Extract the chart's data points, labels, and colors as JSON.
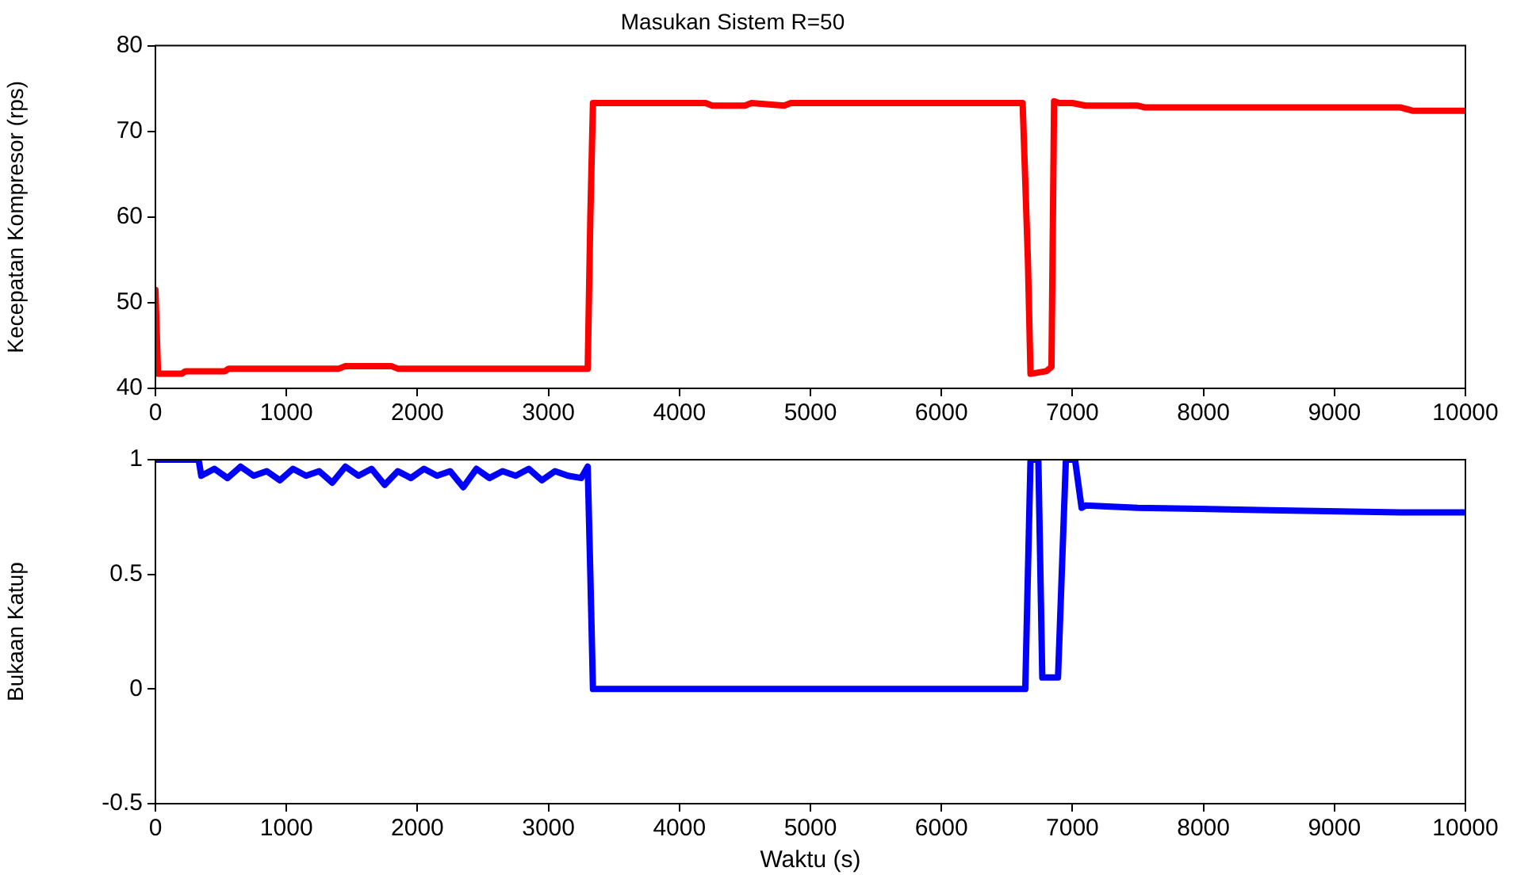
{
  "chart_data": [
    {
      "type": "line",
      "title": "Masukan Sistem R=50",
      "ylabel": "Kecepatan Kompresor (rps)",
      "xlim": [
        0,
        10000
      ],
      "xticks": [
        0,
        1000,
        2000,
        3000,
        4000,
        5000,
        6000,
        7000,
        8000,
        9000,
        10000
      ],
      "ylim": [
        40,
        80
      ],
      "yticks": [
        40,
        50,
        60,
        70,
        80
      ],
      "grid": false,
      "legend": false,
      "marker": "none",
      "line_style": "solid",
      "series": [
        {
          "color": "#ff0000",
          "x": [
            0,
            20,
            200,
            230,
            530,
            560,
            1400,
            1450,
            1800,
            1850,
            3300,
            3320,
            3340,
            4200,
            4250,
            4500,
            4550,
            4800,
            4850,
            6620,
            6660,
            6680,
            6800,
            6840,
            6860,
            6900,
            7000,
            7100,
            7500,
            7550,
            9500,
            9600,
            10000
          ],
          "values": [
            51.5,
            41.7,
            41.7,
            42.0,
            42.0,
            42.3,
            42.3,
            42.6,
            42.6,
            42.3,
            42.3,
            60,
            73.3,
            73.3,
            73.0,
            73.0,
            73.3,
            73.0,
            73.3,
            73.3,
            55,
            41.7,
            42.0,
            42.5,
            73.5,
            73.3,
            73.3,
            73.0,
            73.0,
            72.8,
            72.8,
            72.4,
            72.4
          ]
        }
      ]
    },
    {
      "type": "line",
      "xlabel": "Waktu (s)",
      "ylabel": "Bukaan Katup",
      "xlim": [
        0,
        10000
      ],
      "xticks": [
        0,
        1000,
        2000,
        3000,
        4000,
        5000,
        6000,
        7000,
        8000,
        9000,
        10000
      ],
      "ylim": [
        -0.5,
        1
      ],
      "yticks": [
        -0.5,
        0,
        0.5,
        1
      ],
      "grid": false,
      "legend": false,
      "marker": "none",
      "line_style": "solid",
      "series": [
        {
          "color": "#0000ff",
          "x": [
            0,
            330,
            350,
            450,
            550,
            650,
            750,
            850,
            950,
            1050,
            1150,
            1250,
            1350,
            1450,
            1550,
            1650,
            1750,
            1850,
            1950,
            2050,
            2150,
            2250,
            2350,
            2450,
            2550,
            2650,
            2750,
            2850,
            2950,
            3050,
            3150,
            3250,
            3300,
            3320,
            3340,
            6640,
            6680,
            6740,
            6770,
            6890,
            6950,
            7020,
            7070,
            7100,
            7500,
            8500,
            9500,
            10000
          ],
          "values": [
            1,
            1,
            0.93,
            0.96,
            0.92,
            0.97,
            0.93,
            0.95,
            0.91,
            0.96,
            0.93,
            0.95,
            0.9,
            0.97,
            0.93,
            0.96,
            0.89,
            0.95,
            0.92,
            0.96,
            0.93,
            0.95,
            0.88,
            0.96,
            0.92,
            0.95,
            0.93,
            0.96,
            0.91,
            0.95,
            0.93,
            0.92,
            0.97,
            0.5,
            0,
            0,
            1,
            1,
            0.05,
            0.05,
            1,
            1,
            0.79,
            0.8,
            0.79,
            0.78,
            0.77,
            0.77
          ]
        }
      ]
    }
  ]
}
